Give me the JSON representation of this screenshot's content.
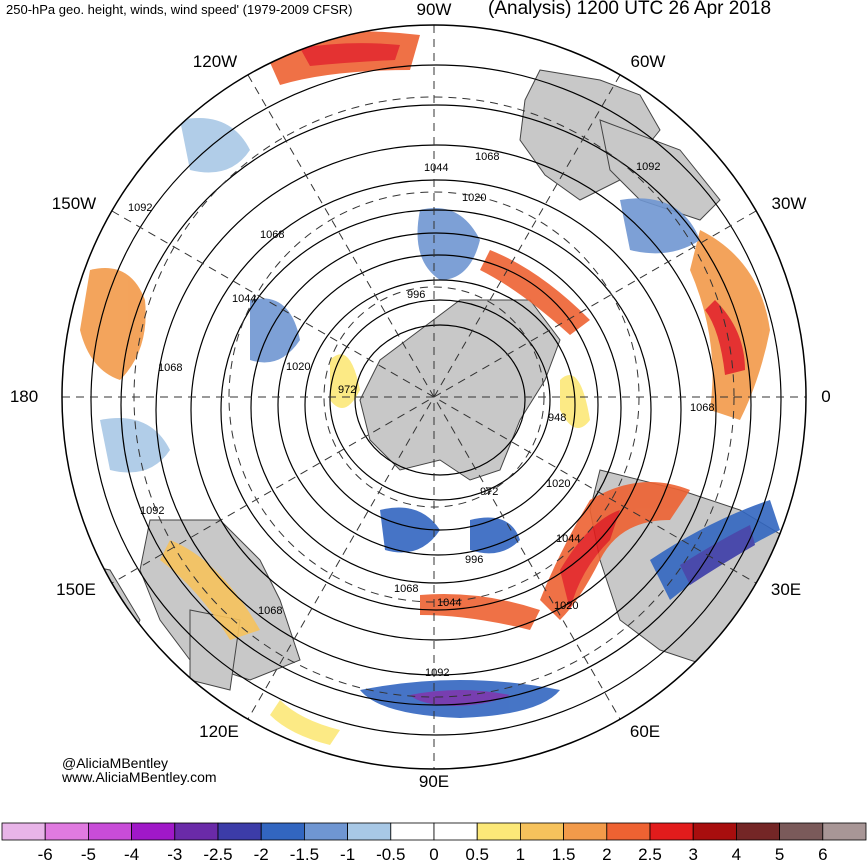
{
  "header": {
    "left_title": "250-hPa geo. height, winds, wind speed' (1979-2009 CFSR)",
    "right_title": "(Analysis) 1200 UTC 26 Apr 2018"
  },
  "map": {
    "projection": "north-polar-stereographic",
    "longitude_labels": {
      "top": "90W",
      "top_left": "120W",
      "upper_left": "150W",
      "left": "180",
      "lower_left": "150E",
      "bottom_left": "120E",
      "bottom": "90E",
      "bottom_right": "60E",
      "lower_right": "30E",
      "right": "0",
      "upper_right": "30W",
      "top_right": "60W"
    },
    "contour_labels": [
      "1092",
      "1068",
      "1044",
      "1068",
      "1092",
      "1068",
      "1044",
      "1020",
      "996",
      "1020",
      "972",
      "948",
      "972",
      "1020",
      "1044",
      "1068",
      "1092",
      "1068",
      "1044",
      "1020",
      "996",
      "1092",
      "1068"
    ],
    "colors": {
      "land": "#c8c8c8",
      "coast": "#444444",
      "contour": "#000000",
      "grid": "#333333"
    }
  },
  "credits": {
    "handle": "@AliciaMBentley",
    "site": "www.AliciaMBentley.com"
  },
  "colorbar": {
    "ticks": [
      "-6",
      "-5",
      "-4",
      "-3",
      "-2.5",
      "-2",
      "-1.5",
      "-1",
      "-0.5",
      "0",
      "0.5",
      "1",
      "1.5",
      "2",
      "2.5",
      "3",
      "4",
      "5",
      "6"
    ],
    "colors": [
      "#e8b4e8",
      "#e07ae0",
      "#c84cd8",
      "#a018c8",
      "#6a2aa8",
      "#3c3ca8",
      "#3266c0",
      "#6f96d2",
      "#a8c8e6",
      "#ffffff",
      "#ffffff",
      "#fce878",
      "#f6c25c",
      "#f29a4a",
      "#ee6232",
      "#e21c1c",
      "#a80e0e",
      "#742626",
      "#7a5a5a",
      "#a89696"
    ]
  }
}
